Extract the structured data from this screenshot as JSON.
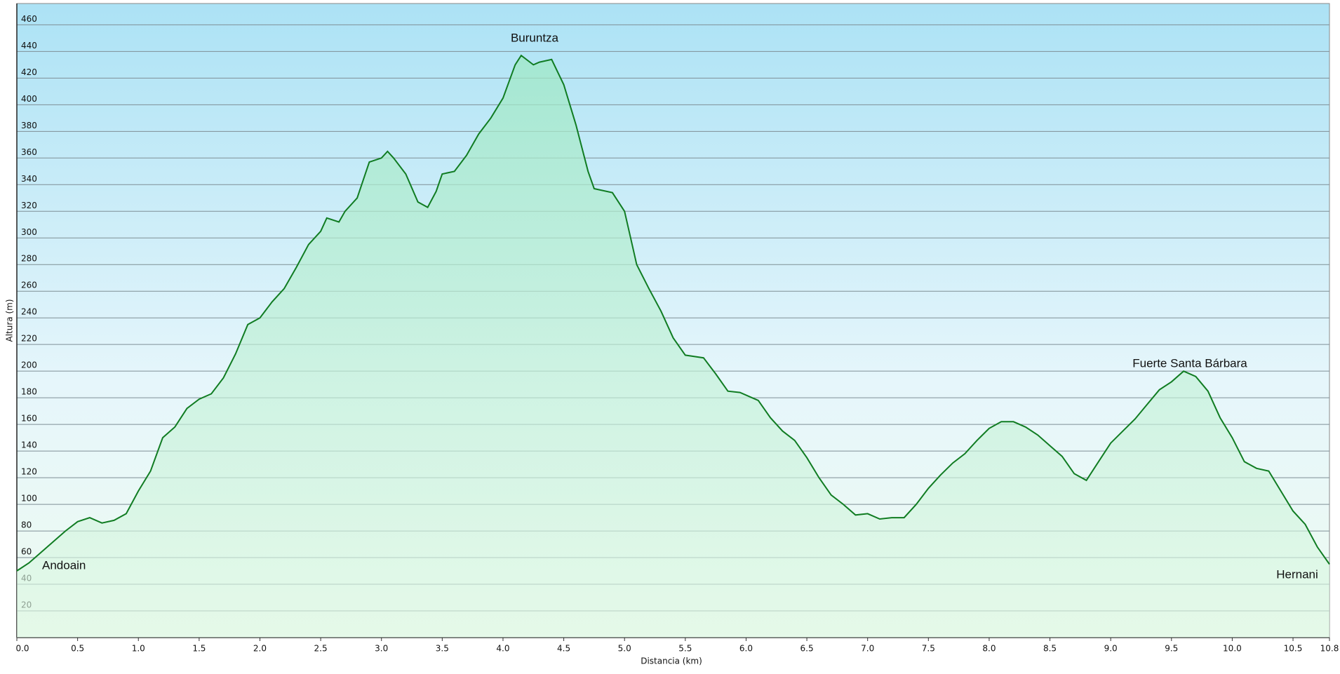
{
  "chart_data": {
    "type": "area",
    "x_label": "Distancia  (km)",
    "y_label": "Altura (m)",
    "annotations": [
      "Buruntza",
      "Andoain",
      "Fuerte Santa Bárbara",
      "Hernani"
    ],
    "xlim": [
      0,
      10.8
    ],
    "ylim": [
      0,
      476
    ],
    "xticks": [
      {
        "value": 0,
        "label": "0.0"
      },
      0.5,
      {
        "value": 1,
        "label": "1.0"
      },
      1.5,
      {
        "value": 2,
        "label": "2.0"
      },
      2.5,
      {
        "value": 3,
        "label": "3.0"
      },
      3.5,
      {
        "value": 4,
        "label": "4.0"
      },
      4.5,
      {
        "value": 5,
        "label": "5.0"
      },
      5.5,
      {
        "value": 6,
        "label": "6.0"
      },
      6.5,
      {
        "value": 7,
        "label": "7.0"
      },
      7.5,
      {
        "value": 8,
        "label": "8.0"
      },
      8.5,
      {
        "value": 9,
        "label": "9.0"
      },
      9.5,
      {
        "value": 10,
        "label": "10.0"
      },
      10.5,
      10.8
    ],
    "yticks": [
      20,
      40,
      60,
      80,
      100,
      120,
      140,
      160,
      180,
      200,
      220,
      240,
      260,
      280,
      300,
      320,
      340,
      360,
      380,
      400,
      420,
      440,
      460
    ],
    "grid": true,
    "series": [
      {
        "color": "#107c22",
        "x": [
          0,
          0.1,
          0.2,
          0.3,
          0.4,
          0.5,
          0.6,
          0.7,
          0.8,
          0.9,
          1.0,
          1.1,
          1.2,
          1.3,
          1.4,
          1.5,
          1.6,
          1.7,
          1.8,
          1.9,
          2.0,
          2.1,
          2.2,
          2.3,
          2.4,
          2.5,
          2.55,
          2.65,
          2.7,
          2.8,
          2.9,
          3.0,
          3.05,
          3.1,
          3.2,
          3.3,
          3.38,
          3.45,
          3.5,
          3.6,
          3.7,
          3.8,
          3.9,
          4.0,
          4.1,
          4.15,
          4.25,
          4.3,
          4.4,
          4.5,
          4.6,
          4.7,
          4.75,
          4.9,
          5.0,
          5.05,
          5.1,
          5.2,
          5.3,
          5.4,
          5.5,
          5.65,
          5.75,
          5.85,
          5.95,
          6.05,
          6.1,
          6.2,
          6.3,
          6.4,
          6.5,
          6.6,
          6.7,
          6.8,
          6.9,
          7.0,
          7.1,
          7.2,
          7.3,
          7.4,
          7.5,
          7.6,
          7.7,
          7.8,
          7.9,
          8.0,
          8.1,
          8.2,
          8.3,
          8.4,
          8.5,
          8.6,
          8.7,
          8.8,
          8.9,
          9.0,
          9.1,
          9.2,
          9.3,
          9.4,
          9.5,
          9.6,
          9.7,
          9.8,
          9.9,
          10.0,
          10.1,
          10.2,
          10.3,
          10.4,
          10.5,
          10.6,
          10.7,
          10.8
        ],
        "values": [
          50,
          56,
          64,
          72,
          80,
          87,
          90,
          86,
          88,
          93,
          110,
          125,
          150,
          158,
          172,
          179,
          183,
          195,
          213,
          235,
          240,
          252,
          262,
          278,
          295,
          305,
          315,
          312,
          320,
          330,
          357,
          360,
          365,
          360,
          348,
          327,
          323,
          335,
          348,
          350,
          362,
          378,
          390,
          405,
          430,
          437,
          430,
          432,
          434,
          415,
          385,
          350,
          337,
          334,
          320,
          300,
          280,
          262,
          245,
          225,
          212,
          210,
          198,
          185,
          184,
          180,
          178,
          165,
          155,
          148,
          135,
          120,
          107,
          100,
          92,
          93,
          89,
          90,
          90,
          100,
          112,
          122,
          131,
          138,
          148,
          157,
          162,
          162,
          158,
          152,
          144,
          136,
          123,
          118,
          132,
          146,
          155,
          164,
          175,
          186,
          192,
          200,
          196,
          185,
          165,
          150,
          132,
          127,
          125,
          110,
          95,
          85,
          68,
          55
        ]
      }
    ]
  }
}
